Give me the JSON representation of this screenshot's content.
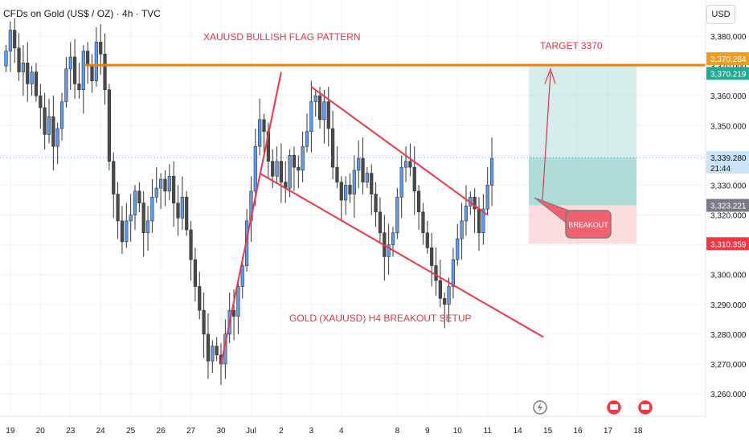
{
  "header": {
    "symbol_title": "CFDs on Gold (US$ / OZ) · 4h · TVC",
    "currency": "USD"
  },
  "chart_data": {
    "type": "candlestick",
    "title": "XAUUSD BULLISH FLAG PATTERN",
    "subtitle": "GOLD (XAUUSD) H4 BREAKOUT SETUP",
    "ylim": [
      3252,
      3386
    ],
    "y_ticks": [
      3260,
      3270,
      3280,
      3290,
      3300,
      3310,
      3320,
      3330,
      3340,
      3350,
      3360,
      3370,
      3380
    ],
    "y_tick_labels": [
      "3,260.000",
      "3,270.000",
      "3,280.000",
      "3,290.000",
      "3,300.000",
      "3,310.000",
      "3,320.000",
      "3,330.000",
      "3,340.000",
      "3,350.000",
      "3,360.000",
      "3,370.000",
      "3,380.000"
    ],
    "x_ticks": [
      {
        "label": "19",
        "index": 1
      },
      {
        "label": "20",
        "index": 8
      },
      {
        "label": "23",
        "index": 15
      },
      {
        "label": "24",
        "index": 22
      },
      {
        "label": "25",
        "index": 29
      },
      {
        "label": "26",
        "index": 36
      },
      {
        "label": "27",
        "index": 43
      },
      {
        "label": "30",
        "index": 50
      },
      {
        "label": "Jul",
        "index": 57
      },
      {
        "label": "2",
        "index": 64
      },
      {
        "label": "3",
        "index": 71
      },
      {
        "label": "4",
        "index": 78
      },
      {
        "label": "8",
        "index": 91
      },
      {
        "label": "9",
        "index": 98
      },
      {
        "label": "10",
        "index": 105
      },
      {
        "label": "11",
        "index": 112
      },
      {
        "label": "14",
        "index": 119
      },
      {
        "label": "15",
        "index": 126
      },
      {
        "label": "16",
        "index": 133
      },
      {
        "label": "17",
        "index": 140
      },
      {
        "label": "18",
        "index": 147
      }
    ],
    "up_color": "#5b9cf6",
    "down_color": "#4a4a4a",
    "candles_close": [
      3375,
      3382,
      3376,
      3368,
      3371,
      3364,
      3368,
      3360,
      3356,
      3347,
      3353,
      3343,
      3349,
      3358,
      3369,
      3373,
      3364,
      3362,
      3375,
      3370,
      3365,
      3378,
      3374,
      3362,
      3338,
      3327,
      3318,
      3311,
      3318,
      3320,
      3328,
      3324,
      3314,
      3318,
      3326,
      3329,
      3332,
      3328,
      3333,
      3324,
      3319,
      3326,
      3315,
      3305,
      3296,
      3288,
      3280,
      3271,
      3276,
      3273,
      3270,
      3280,
      3288,
      3286,
      3296,
      3303,
      3318,
      3328,
      3343,
      3352,
      3348,
      3338,
      3333,
      3338,
      3331,
      3329,
      3340,
      3336,
      3335,
      3343,
      3348,
      3358,
      3360,
      3352,
      3358,
      3349,
      3336,
      3331,
      3325,
      3330,
      3327,
      3335,
      3339,
      3331,
      3334,
      3327,
      3321,
      3314,
      3306,
      3310,
      3314,
      3326,
      3336,
      3338,
      3336,
      3328,
      3321,
      3314,
      3309,
      3303,
      3298,
      3292,
      3290,
      3296,
      3305,
      3312,
      3318,
      3323,
      3326,
      3322,
      3314,
      3322,
      3330,
      3339
    ],
    "candles_open": [
      3370,
      3375,
      3382,
      3376,
      3368,
      3371,
      3364,
      3368,
      3360,
      3356,
      3347,
      3353,
      3343,
      3349,
      3358,
      3369,
      3373,
      3364,
      3362,
      3375,
      3370,
      3365,
      3378,
      3374,
      3362,
      3338,
      3327,
      3318,
      3311,
      3318,
      3320,
      3328,
      3324,
      3314,
      3318,
      3326,
      3329,
      3332,
      3328,
      3333,
      3324,
      3319,
      3326,
      3315,
      3305,
      3296,
      3288,
      3280,
      3271,
      3276,
      3273,
      3270,
      3280,
      3288,
      3286,
      3296,
      3303,
      3318,
      3328,
      3343,
      3352,
      3348,
      3338,
      3333,
      3338,
      3331,
      3329,
      3340,
      3336,
      3335,
      3343,
      3348,
      3358,
      3360,
      3352,
      3358,
      3349,
      3336,
      3331,
      3325,
      3330,
      3327,
      3335,
      3339,
      3331,
      3334,
      3327,
      3321,
      3314,
      3306,
      3310,
      3314,
      3326,
      3336,
      3338,
      3336,
      3328,
      3321,
      3314,
      3309,
      3303,
      3298,
      3292,
      3290,
      3296,
      3305,
      3312,
      3318,
      3323,
      3326,
      3322,
      3314,
      3322,
      3330
    ],
    "last_price": 3339.28,
    "price_labels": [
      {
        "text": "3,370.284",
        "value": 3370.284,
        "color": "#f59c1a"
      },
      {
        "text": "3,370.219",
        "value": 3370.219,
        "color": "#22ab94"
      },
      {
        "text": "3,339.280",
        "value": 3339.28,
        "color": "#c9e3f7",
        "extra": "21:44"
      },
      {
        "text": "3,323.221",
        "value": 3323.221,
        "color": "#787b86"
      },
      {
        "text": "3,310.359",
        "value": 3310.359,
        "color": "#f23645"
      }
    ],
    "resistance_level": 3370.28,
    "position": {
      "entry": 3323.221,
      "target": 3370.219,
      "stop": 3310.359
    },
    "flag_pole": [
      [
        50,
        3270
      ],
      [
        64,
        3368
      ]
    ],
    "flag_upper": [
      [
        71,
        3363
      ],
      [
        112,
        3320
      ]
    ],
    "flag_lower": [
      [
        59,
        3334
      ],
      [
        125,
        3279
      ]
    ],
    "annotations": {
      "target": "TARGET 3370",
      "breakout": "BREAKOUT"
    }
  }
}
